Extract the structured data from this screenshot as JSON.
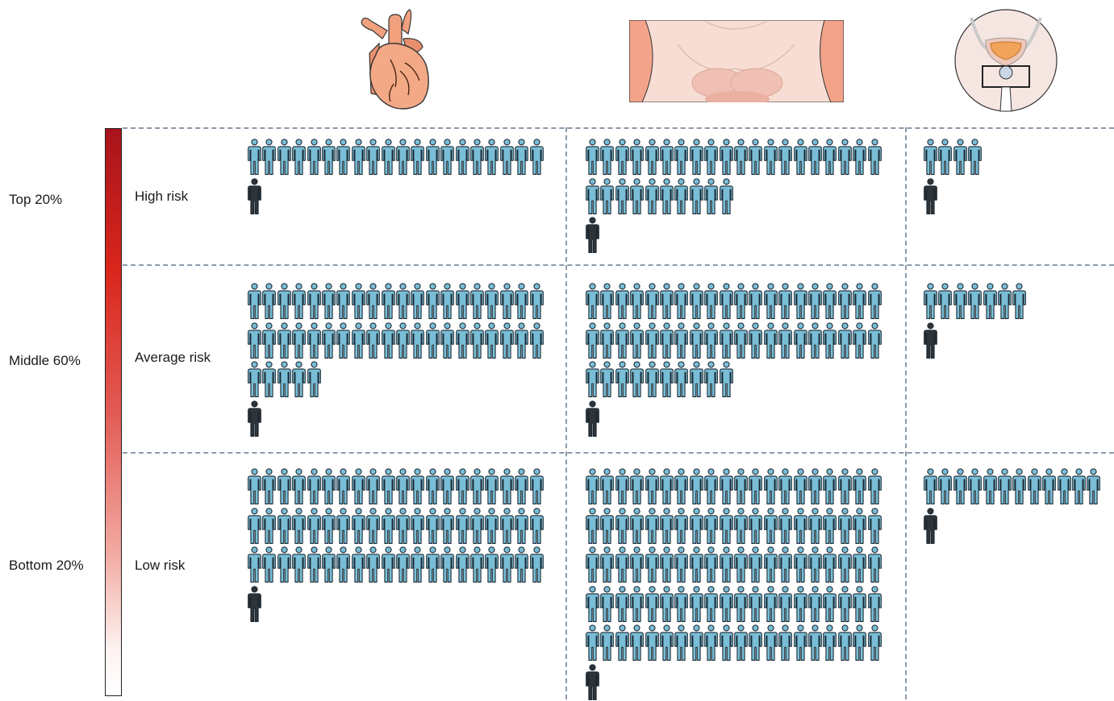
{
  "organs": [
    {
      "icon": "heart-icon"
    },
    {
      "icon": "torso-breast-icon"
    },
    {
      "icon": "prostate-icon"
    }
  ],
  "scale": {
    "colors": [
      "#a8141c",
      "#d9261c",
      "#e25b55",
      "#f2aaa2",
      "#ffffff"
    ]
  },
  "percentile_labels": [
    "Top 20%",
    "Middle 60%",
    "Bottom 20%"
  ],
  "risk_labels": [
    "High risk",
    "Average risk",
    "Low risk"
  ],
  "colors": {
    "unaffected": "#79bdd6",
    "affected": "#2f3438",
    "outline": "#1b2730",
    "grid": "#8a9aab"
  },
  "grid": [
    [
      {
        "unaffected": 20,
        "affected": 1
      },
      {
        "unaffected": 30,
        "affected": 1
      },
      {
        "unaffected": 4,
        "affected": 1
      }
    ],
    [
      {
        "unaffected": 45,
        "affected": 1
      },
      {
        "unaffected": 50,
        "affected": 1
      },
      {
        "unaffected": 7,
        "affected": 1
      }
    ],
    [
      {
        "unaffected": 60,
        "affected": 1
      },
      {
        "unaffected": 100,
        "affected": 1
      },
      {
        "unaffected": 12,
        "affected": 1
      }
    ]
  ]
}
